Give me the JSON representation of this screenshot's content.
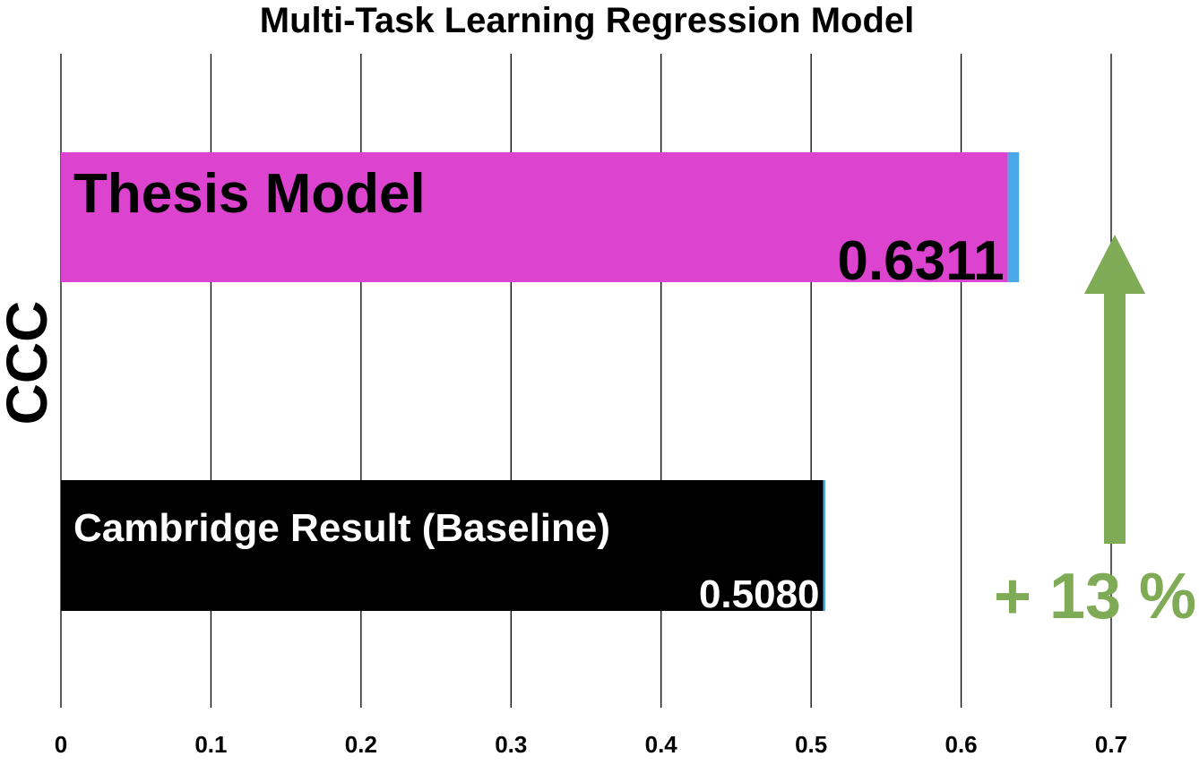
{
  "chart_data": {
    "type": "bar",
    "orientation": "horizontal",
    "title": "Multi-Task Learning Regression Model",
    "ylabel": "CCC",
    "xlabel": "",
    "xlim": [
      0,
      0.7
    ],
    "xticks": [
      "0",
      "0.1",
      "0.2",
      "0.3",
      "0.4",
      "0.5",
      "0.6",
      "0.7"
    ],
    "grid": true,
    "bars": [
      {
        "label": "Thesis Model",
        "value": 0.6311,
        "value_label": "0.6311",
        "color": "#dc43cf",
        "error": 0.0075,
        "error_color": "#4aa8e8"
      },
      {
        "label": "Cambridge Result (Baseline)",
        "value": 0.508,
        "value_label": "0.5080",
        "color": "#000000",
        "error": 0.0015,
        "error_color": "#4aa8e8"
      }
    ],
    "annotation": {
      "text": "+ 13 %",
      "color": "#7fab56",
      "icon": "up-arrow-icon"
    }
  }
}
